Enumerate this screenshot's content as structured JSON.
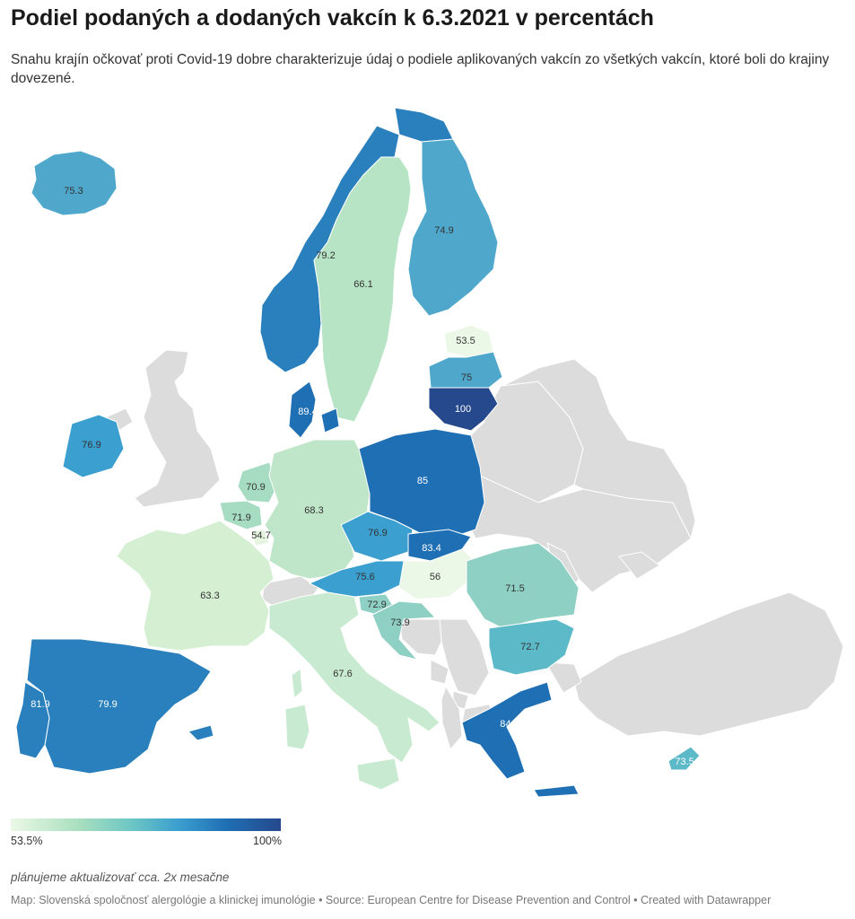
{
  "header": {
    "title": "Podiel podaných a dodaných vakcín k 6.3.2021 v percentách",
    "subtitle": "Snahu krajín očkovať proti Covid-19 dobre charakterizuje údaj o podiele aplikovaných vakcín zo všetkých vakcín, ktoré boli do krajiny dovezené."
  },
  "colors": {
    "no_data": "#dcdcdc",
    "scale": [
      "#ecf8e7",
      "#a9dfbf",
      "#6cc6c4",
      "#3b9fcf",
      "#1f6fb4",
      "#26488d"
    ]
  },
  "map_values": {
    "iceland": "75.3",
    "norway": "79.2",
    "sweden": "66.1",
    "finland": "74.9",
    "estonia": "53.5",
    "latvia": "75",
    "lithuania": "100",
    "denmark": "89.4",
    "ireland": "76.9",
    "netherlands": "70.9",
    "belgium": "71.9",
    "luxembourg": "54.7",
    "germany": "68.3",
    "poland": "85",
    "czechia": "76.9",
    "slovakia": "83.4",
    "austria": "75.6",
    "hungary": "56",
    "romania": "71.5",
    "slovenia": "72.9",
    "croatia": "73.9",
    "bulgaria": "72.7",
    "france": "63.3",
    "italy": "67.6",
    "spain": "79.9",
    "portugal": "81.9",
    "greece": "84.4",
    "cyprus": "73.5"
  },
  "legend": {
    "min_label": "53.5%",
    "max_label": "100%"
  },
  "footer": {
    "note": "plánujeme aktualizovať cca. 2x mesačne",
    "source": "Map: Slovenská spoločnosť alergológie a klinickej imunológie • Source: European Centre for Disease Prevention and Control • Created with Datawrapper"
  }
}
